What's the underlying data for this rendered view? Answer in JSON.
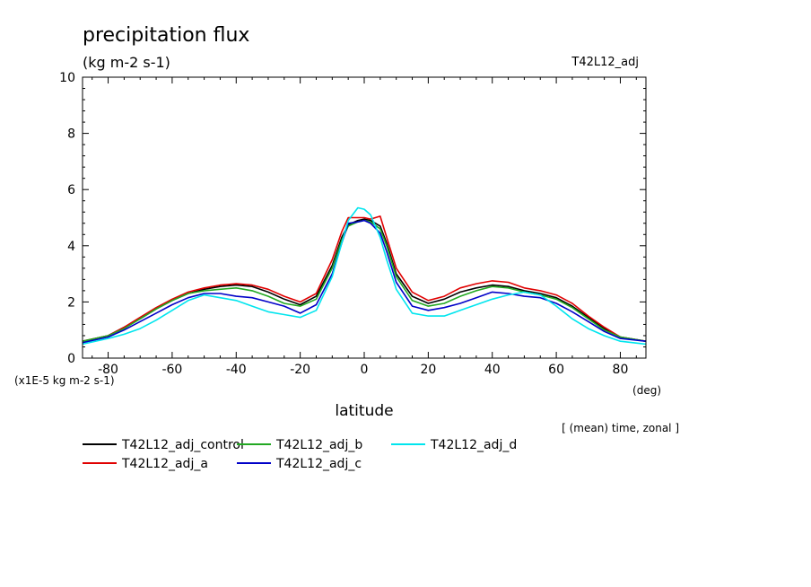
{
  "chart_data": {
    "type": "line",
    "title": "precipitation flux",
    "units": "(kg m-2 s-1)",
    "run_label": "T42L12_adj",
    "xlabel": "latitude",
    "x_unit": "(deg)",
    "y_scale_note": "(x1E-5 kg m-2 s-1)",
    "averaging_note": "[ (mean) time, zonal ]",
    "xlim": [
      -88,
      88
    ],
    "ylim": [
      0,
      10
    ],
    "x_ticks": [
      -80,
      -60,
      -40,
      -20,
      0,
      20,
      40,
      60,
      80
    ],
    "x_tick_labels": [
      "-80",
      "-60",
      "-40",
      "-20",
      "0",
      "20",
      "40",
      "60",
      "80"
    ],
    "y_ticks": [
      0,
      2,
      4,
      6,
      8,
      10
    ],
    "y_tick_labels": [
      "0",
      "2",
      "4",
      "6",
      "8",
      "10"
    ],
    "grid": false,
    "legend_position": "bottom-left",
    "x": [
      -88,
      -80,
      -75,
      -70,
      -65,
      -60,
      -55,
      -50,
      -45,
      -40,
      -35,
      -30,
      -25,
      -20,
      -15,
      -10,
      -7,
      -5,
      -2,
      0,
      2,
      5,
      7,
      10,
      15,
      20,
      25,
      30,
      35,
      40,
      45,
      50,
      55,
      60,
      65,
      70,
      75,
      80,
      88
    ],
    "series": [
      {
        "name": "T42L12_adj_control",
        "color": "#000000",
        "values": [
          0.6,
          0.8,
          1.1,
          1.4,
          1.75,
          2.05,
          2.3,
          2.45,
          2.55,
          2.6,
          2.55,
          2.35,
          2.1,
          1.9,
          2.2,
          3.3,
          4.3,
          4.75,
          4.9,
          4.95,
          4.9,
          4.7,
          4.1,
          3.0,
          2.2,
          1.95,
          2.1,
          2.35,
          2.5,
          2.6,
          2.55,
          2.4,
          2.3,
          2.15,
          1.85,
          1.45,
          1.05,
          0.75,
          0.6
        ]
      },
      {
        "name": "T42L12_adj_a",
        "color": "#e00000",
        "values": [
          0.6,
          0.8,
          1.1,
          1.45,
          1.8,
          2.1,
          2.35,
          2.5,
          2.6,
          2.65,
          2.6,
          2.45,
          2.2,
          2.0,
          2.3,
          3.5,
          4.5,
          5.0,
          5.0,
          5.0,
          4.95,
          5.05,
          4.3,
          3.2,
          2.35,
          2.05,
          2.2,
          2.5,
          2.65,
          2.75,
          2.7,
          2.5,
          2.4,
          2.25,
          1.95,
          1.5,
          1.1,
          0.75,
          0.6
        ]
      },
      {
        "name": "T42L12_adj_b",
        "color": "#22a822",
        "values": [
          0.6,
          0.8,
          1.05,
          1.4,
          1.75,
          2.05,
          2.3,
          2.4,
          2.45,
          2.5,
          2.4,
          2.2,
          1.95,
          1.85,
          2.1,
          3.2,
          4.2,
          4.7,
          4.85,
          4.9,
          4.85,
          4.6,
          4.0,
          2.9,
          2.05,
          1.85,
          1.95,
          2.2,
          2.4,
          2.55,
          2.5,
          2.35,
          2.25,
          2.1,
          1.8,
          1.4,
          1.0,
          0.75,
          0.6
        ]
      },
      {
        "name": "T42L12_adj_c",
        "color": "#0000c8",
        "values": [
          0.55,
          0.75,
          1.0,
          1.3,
          1.6,
          1.9,
          2.15,
          2.3,
          2.3,
          2.2,
          2.15,
          2.0,
          1.85,
          1.6,
          1.9,
          3.0,
          4.1,
          4.8,
          4.85,
          4.9,
          4.8,
          4.45,
          3.8,
          2.7,
          1.85,
          1.7,
          1.8,
          1.95,
          2.15,
          2.35,
          2.3,
          2.2,
          2.15,
          1.95,
          1.65,
          1.3,
          0.95,
          0.7,
          0.6
        ]
      },
      {
        "name": "T42L12_adj_d",
        "color": "#00e5ee",
        "values": [
          0.5,
          0.7,
          0.85,
          1.05,
          1.35,
          1.7,
          2.05,
          2.25,
          2.15,
          2.05,
          1.85,
          1.65,
          1.55,
          1.45,
          1.7,
          2.9,
          4.1,
          4.9,
          5.35,
          5.3,
          5.1,
          4.3,
          3.5,
          2.45,
          1.6,
          1.5,
          1.5,
          1.7,
          1.9,
          2.1,
          2.25,
          2.35,
          2.25,
          1.85,
          1.4,
          1.05,
          0.8,
          0.6,
          0.5
        ]
      }
    ]
  }
}
